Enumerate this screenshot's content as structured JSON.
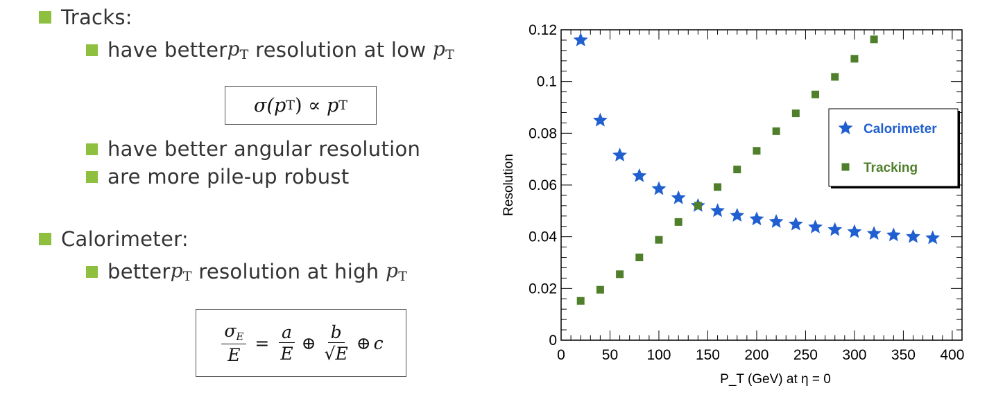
{
  "left": {
    "tracks": {
      "heading": "Tracks:",
      "item1": {
        "pre": "have better ",
        "mid": " resolution at low "
      },
      "formula": {
        "lhs_func": "σ(",
        "rhs": ") ∝ "
      },
      "item2": "have better angular resolution",
      "item3": "are more pile-up robust"
    },
    "calorimeter": {
      "heading": "Calorimeter:",
      "item1": {
        "pre": "better ",
        "mid": " resolution at high "
      },
      "formula": {
        "sigma": "σ",
        "sigma_sub": "E",
        "E": "E",
        "eq": "=",
        "a": "a",
        "oplus": "⊕",
        "b": "b",
        "sqrtE": "√E",
        "c": "c"
      }
    },
    "symbol": {
      "p": "p",
      "T": "T"
    }
  },
  "chart_data": {
    "type": "scatter",
    "xlabel": "P_T (GeV) at η = 0",
    "ylabel": "Resolution",
    "xlim": [
      0,
      410
    ],
    "ylim": [
      0,
      0.12
    ],
    "x_ticks": [
      0,
      50,
      100,
      150,
      200,
      250,
      300,
      350,
      400
    ],
    "y_ticks": [
      0,
      0.02,
      0.04,
      0.06,
      0.08,
      0.1,
      0.12
    ],
    "legend_position": "top-right",
    "series": [
      {
        "name": "Calorimeter",
        "marker": "star",
        "color": "#1f5fcf",
        "x": [
          20,
          40,
          60,
          80,
          100,
          120,
          140,
          160,
          180,
          200,
          220,
          240,
          260,
          280,
          300,
          320,
          340,
          360,
          380
        ],
        "y": [
          0.116,
          0.085,
          0.0715,
          0.0635,
          0.0585,
          0.055,
          0.052,
          0.05,
          0.0482,
          0.0468,
          0.0458,
          0.0448,
          0.0437,
          0.0427,
          0.0419,
          0.0412,
          0.0406,
          0.04,
          0.0395
        ]
      },
      {
        "name": "Tracking",
        "marker": "square",
        "color": "#4f7f2b",
        "x": [
          20,
          40,
          60,
          80,
          100,
          120,
          140,
          160,
          180,
          200,
          220,
          240,
          260,
          280,
          300,
          320
        ],
        "y": [
          0.0152,
          0.0195,
          0.0255,
          0.032,
          0.0388,
          0.0457,
          0.052,
          0.0592,
          0.066,
          0.0732,
          0.0808,
          0.0877,
          0.095,
          0.1018,
          0.1088,
          0.1163
        ]
      }
    ]
  }
}
